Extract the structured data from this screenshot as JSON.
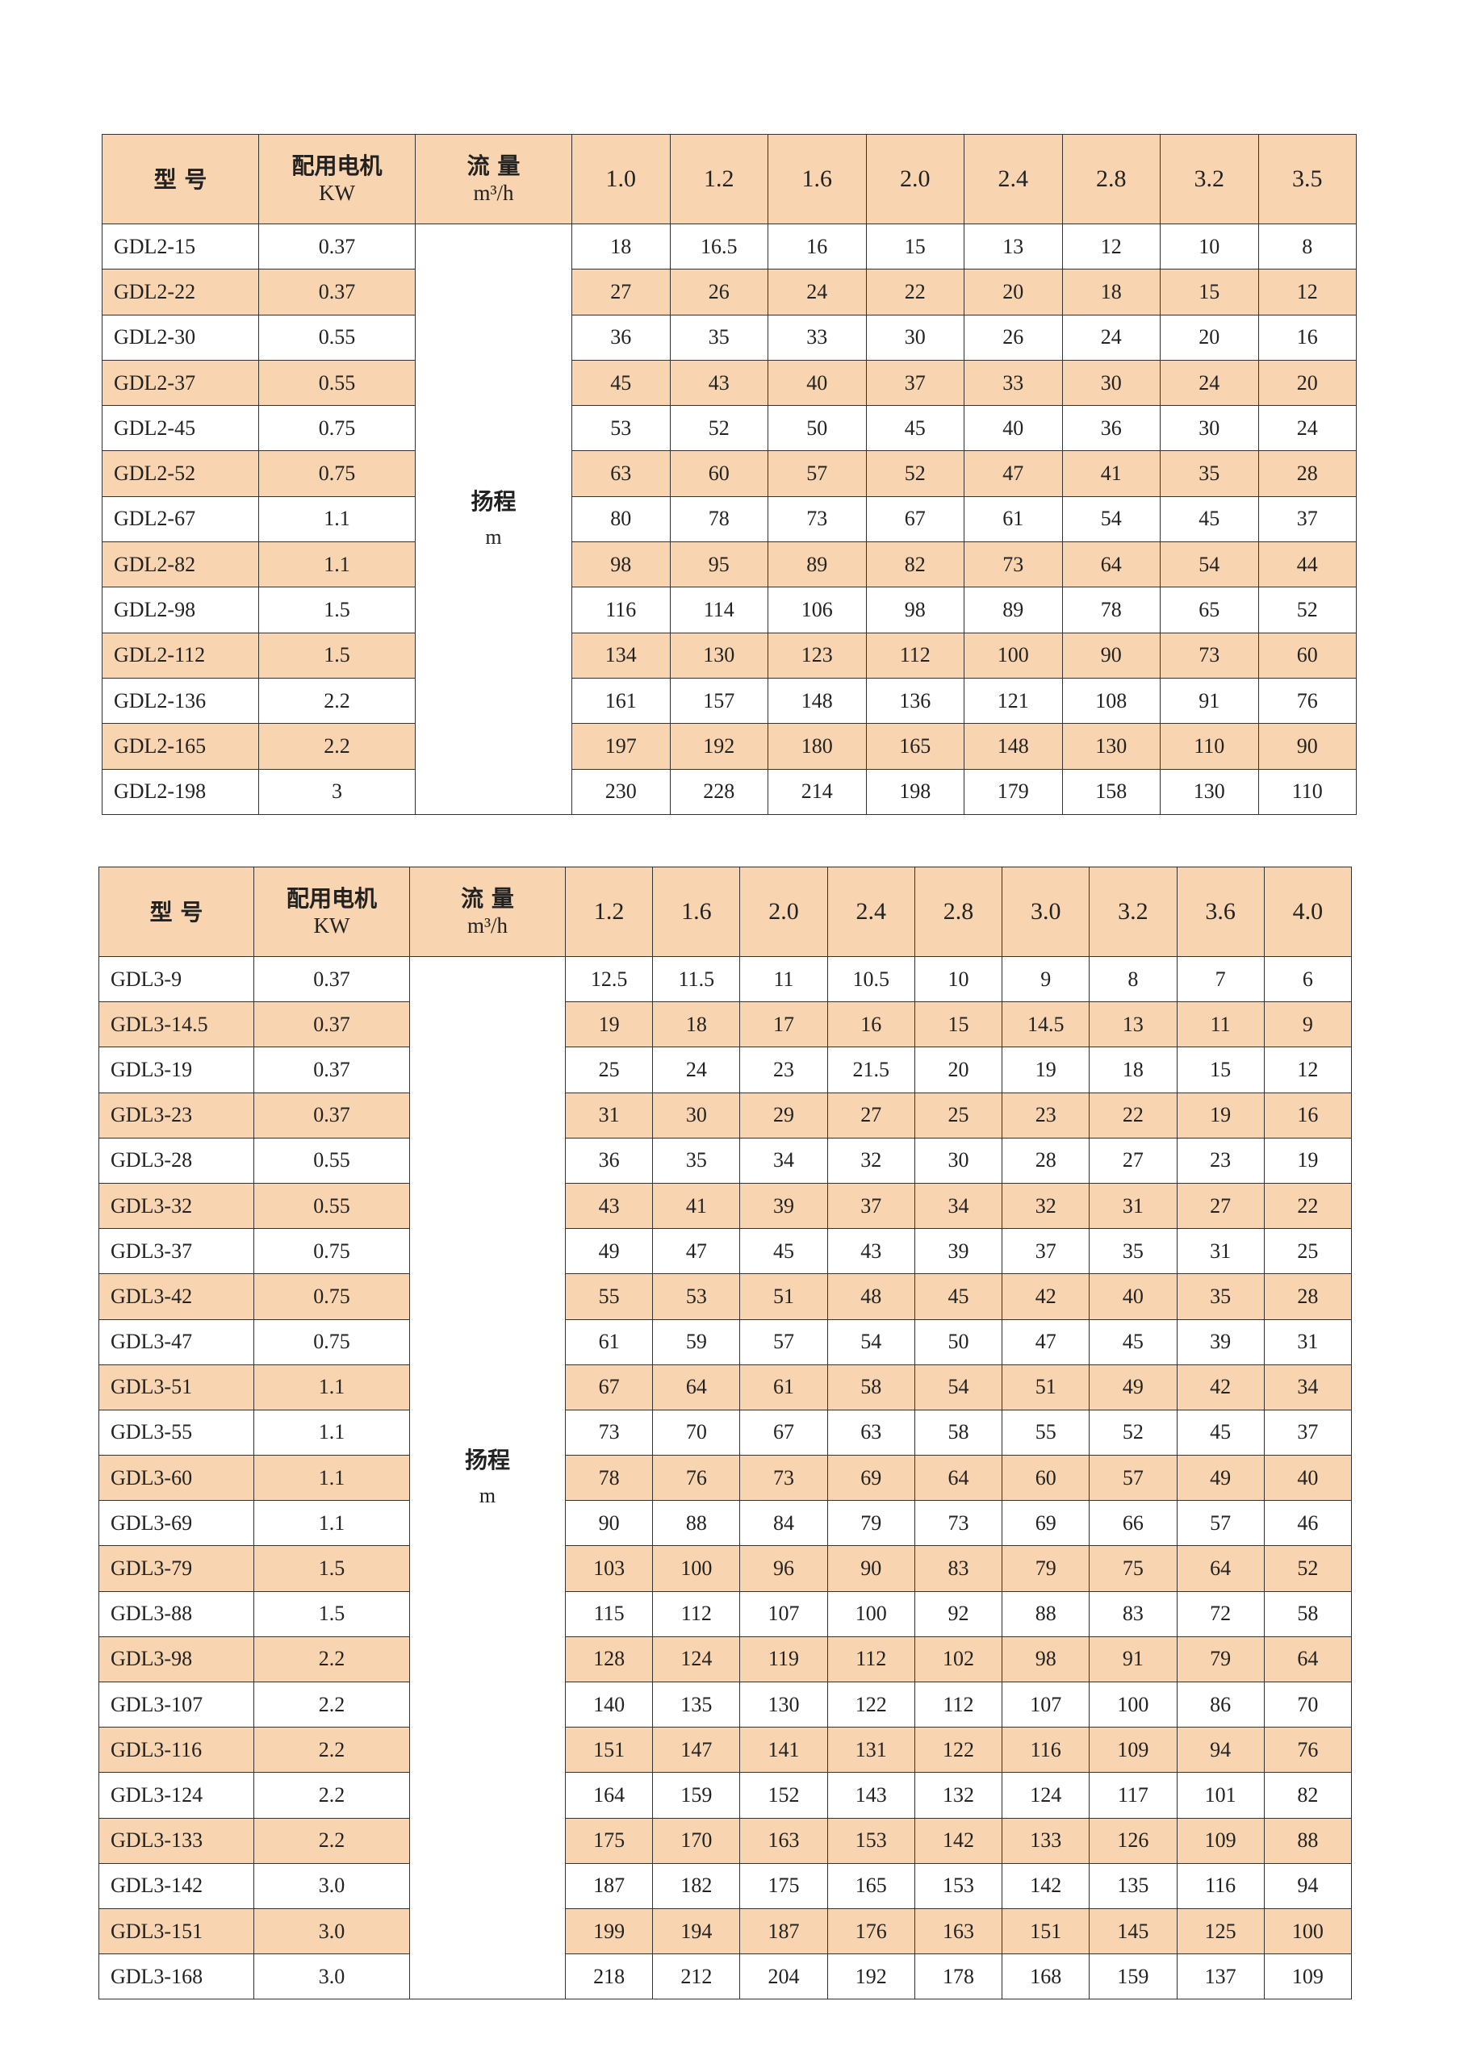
{
  "accent_color": "#f8d5b0",
  "tables": [
    {
      "header": {
        "model": "型  号",
        "motor_line1": "配用电机",
        "motor_line2": "KW",
        "flow_line1": "流 量",
        "flow_line2": "m³/h"
      },
      "flow_values": [
        "1.0",
        "1.2",
        "1.6",
        "2.0",
        "2.4",
        "2.8",
        "3.2",
        "3.5"
      ],
      "head_label_line1": "扬程",
      "head_label_line2": "m",
      "rows": [
        {
          "model": "GDL2-15",
          "kw": "0.37",
          "heads": [
            "18",
            "16.5",
            "16",
            "15",
            "13",
            "12",
            "10",
            "8"
          ]
        },
        {
          "model": "GDL2-22",
          "kw": "0.37",
          "heads": [
            "27",
            "26",
            "24",
            "22",
            "20",
            "18",
            "15",
            "12"
          ]
        },
        {
          "model": "GDL2-30",
          "kw": "0.55",
          "heads": [
            "36",
            "35",
            "33",
            "30",
            "26",
            "24",
            "20",
            "16"
          ]
        },
        {
          "model": "GDL2-37",
          "kw": "0.55",
          "heads": [
            "45",
            "43",
            "40",
            "37",
            "33",
            "30",
            "24",
            "20"
          ]
        },
        {
          "model": "GDL2-45",
          "kw": "0.75",
          "heads": [
            "53",
            "52",
            "50",
            "45",
            "40",
            "36",
            "30",
            "24"
          ]
        },
        {
          "model": "GDL2-52",
          "kw": "0.75",
          "heads": [
            "63",
            "60",
            "57",
            "52",
            "47",
            "41",
            "35",
            "28"
          ]
        },
        {
          "model": "GDL2-67",
          "kw": "1.1",
          "heads": [
            "80",
            "78",
            "73",
            "67",
            "61",
            "54",
            "45",
            "37"
          ]
        },
        {
          "model": "GDL2-82",
          "kw": "1.1",
          "heads": [
            "98",
            "95",
            "89",
            "82",
            "73",
            "64",
            "54",
            "44"
          ]
        },
        {
          "model": "GDL2-98",
          "kw": "1.5",
          "heads": [
            "116",
            "114",
            "106",
            "98",
            "89",
            "78",
            "65",
            "52"
          ]
        },
        {
          "model": "GDL2-112",
          "kw": "1.5",
          "heads": [
            "134",
            "130",
            "123",
            "112",
            "100",
            "90",
            "73",
            "60"
          ]
        },
        {
          "model": "GDL2-136",
          "kw": "2.2",
          "heads": [
            "161",
            "157",
            "148",
            "136",
            "121",
            "108",
            "91",
            "76"
          ]
        },
        {
          "model": "GDL2-165",
          "kw": "2.2",
          "heads": [
            "197",
            "192",
            "180",
            "165",
            "148",
            "130",
            "110",
            "90"
          ]
        },
        {
          "model": "GDL2-198",
          "kw": "3",
          "heads": [
            "230",
            "228",
            "214",
            "198",
            "179",
            "158",
            "130",
            "110"
          ]
        }
      ]
    },
    {
      "header": {
        "model": "型  号",
        "motor_line1": "配用电机",
        "motor_line2": "KW",
        "flow_line1": "流 量",
        "flow_line2": "m³/h"
      },
      "flow_values": [
        "1.2",
        "1.6",
        "2.0",
        "2.4",
        "2.8",
        "3.0",
        "3.2",
        "3.6",
        "4.0"
      ],
      "head_label_line1": "扬程",
      "head_label_line2": "m",
      "rows": [
        {
          "model": "GDL3-9",
          "kw": "0.37",
          "heads": [
            "12.5",
            "11.5",
            "11",
            "10.5",
            "10",
            "9",
            "8",
            "7",
            "6"
          ]
        },
        {
          "model": "GDL3-14.5",
          "kw": "0.37",
          "heads": [
            "19",
            "18",
            "17",
            "16",
            "15",
            "14.5",
            "13",
            "11",
            "9"
          ]
        },
        {
          "model": "GDL3-19",
          "kw": "0.37",
          "heads": [
            "25",
            "24",
            "23",
            "21.5",
            "20",
            "19",
            "18",
            "15",
            "12"
          ]
        },
        {
          "model": "GDL3-23",
          "kw": "0.37",
          "heads": [
            "31",
            "30",
            "29",
            "27",
            "25",
            "23",
            "22",
            "19",
            "16"
          ]
        },
        {
          "model": "GDL3-28",
          "kw": "0.55",
          "heads": [
            "36",
            "35",
            "34",
            "32",
            "30",
            "28",
            "27",
            "23",
            "19"
          ]
        },
        {
          "model": "GDL3-32",
          "kw": "0.55",
          "heads": [
            "43",
            "41",
            "39",
            "37",
            "34",
            "32",
            "31",
            "27",
            "22"
          ]
        },
        {
          "model": "GDL3-37",
          "kw": "0.75",
          "heads": [
            "49",
            "47",
            "45",
            "43",
            "39",
            "37",
            "35",
            "31",
            "25"
          ]
        },
        {
          "model": "GDL3-42",
          "kw": "0.75",
          "heads": [
            "55",
            "53",
            "51",
            "48",
            "45",
            "42",
            "40",
            "35",
            "28"
          ]
        },
        {
          "model": "GDL3-47",
          "kw": "0.75",
          "heads": [
            "61",
            "59",
            "57",
            "54",
            "50",
            "47",
            "45",
            "39",
            "31"
          ]
        },
        {
          "model": "GDL3-51",
          "kw": "1.1",
          "heads": [
            "67",
            "64",
            "61",
            "58",
            "54",
            "51",
            "49",
            "42",
            "34"
          ]
        },
        {
          "model": "GDL3-55",
          "kw": "1.1",
          "heads": [
            "73",
            "70",
            "67",
            "63",
            "58",
            "55",
            "52",
            "45",
            "37"
          ]
        },
        {
          "model": "GDL3-60",
          "kw": "1.1",
          "heads": [
            "78",
            "76",
            "73",
            "69",
            "64",
            "60",
            "57",
            "49",
            "40"
          ]
        },
        {
          "model": "GDL3-69",
          "kw": "1.1",
          "heads": [
            "90",
            "88",
            "84",
            "79",
            "73",
            "69",
            "66",
            "57",
            "46"
          ]
        },
        {
          "model": "GDL3-79",
          "kw": "1.5",
          "heads": [
            "103",
            "100",
            "96",
            "90",
            "83",
            "79",
            "75",
            "64",
            "52"
          ]
        },
        {
          "model": "GDL3-88",
          "kw": "1.5",
          "heads": [
            "115",
            "112",
            "107",
            "100",
            "92",
            "88",
            "83",
            "72",
            "58"
          ]
        },
        {
          "model": "GDL3-98",
          "kw": "2.2",
          "heads": [
            "128",
            "124",
            "119",
            "112",
            "102",
            "98",
            "91",
            "79",
            "64"
          ]
        },
        {
          "model": "GDL3-107",
          "kw": "2.2",
          "heads": [
            "140",
            "135",
            "130",
            "122",
            "112",
            "107",
            "100",
            "86",
            "70"
          ]
        },
        {
          "model": "GDL3-116",
          "kw": "2.2",
          "heads": [
            "151",
            "147",
            "141",
            "131",
            "122",
            "116",
            "109",
            "94",
            "76"
          ]
        },
        {
          "model": "GDL3-124",
          "kw": "2.2",
          "heads": [
            "164",
            "159",
            "152",
            "143",
            "132",
            "124",
            "117",
            "101",
            "82"
          ]
        },
        {
          "model": "GDL3-133",
          "kw": "2.2",
          "heads": [
            "175",
            "170",
            "163",
            "153",
            "142",
            "133",
            "126",
            "109",
            "88"
          ]
        },
        {
          "model": "GDL3-142",
          "kw": "3.0",
          "heads": [
            "187",
            "182",
            "175",
            "165",
            "153",
            "142",
            "135",
            "116",
            "94"
          ]
        },
        {
          "model": "GDL3-151",
          "kw": "3.0",
          "heads": [
            "199",
            "194",
            "187",
            "176",
            "163",
            "151",
            "145",
            "125",
            "100"
          ]
        },
        {
          "model": "GDL3-168",
          "kw": "3.0",
          "heads": [
            "218",
            "212",
            "204",
            "192",
            "178",
            "168",
            "159",
            "137",
            "109"
          ]
        }
      ]
    }
  ]
}
